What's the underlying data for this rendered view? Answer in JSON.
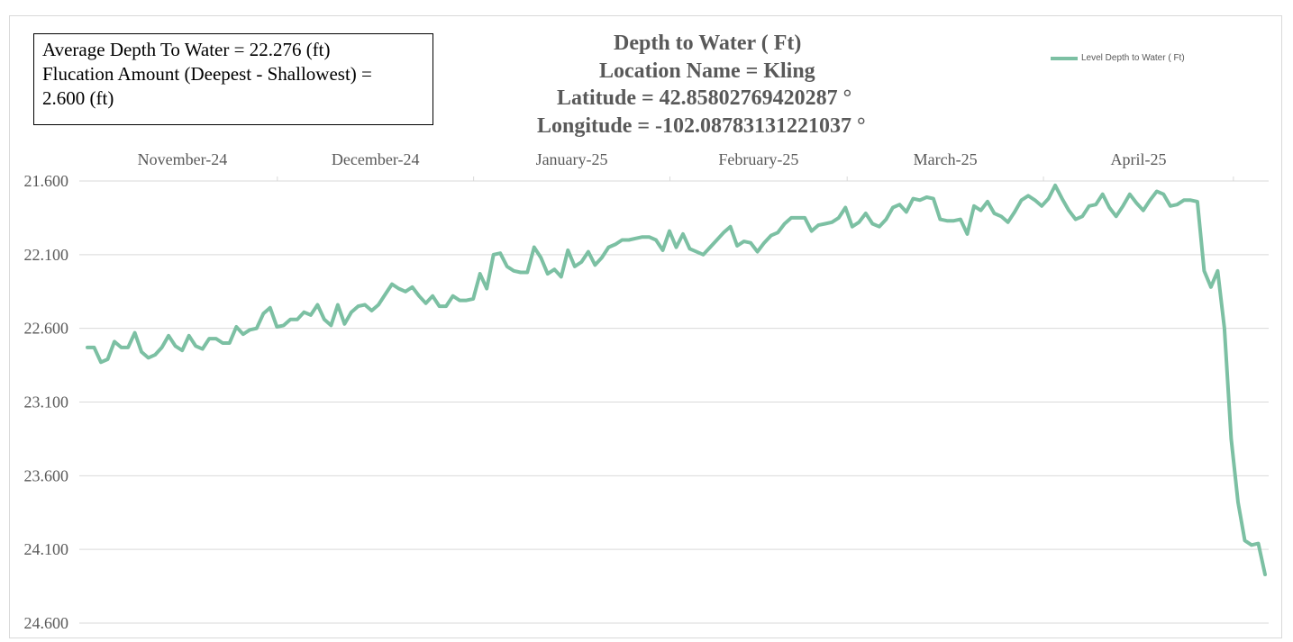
{
  "stats": {
    "line1": "Average Depth To Water = 22.276 (ft)",
    "line2": "Flucation Amount (Deepest - Shallowest) =",
    "line3": "2.600 (ft)"
  },
  "chart_data": {
    "type": "line",
    "title": "Depth to Water ( Ft)",
    "subtitle_lines": [
      "Location Name = Kling",
      "Latitude = 42.85802769420287 °",
      "Longitude = -102.08783131221037 °"
    ],
    "xlabel": "",
    "ylabel": "",
    "x_tick_labels": [
      "November-24",
      "December-24",
      "January-25",
      "February-25",
      "March-25",
      "April-25"
    ],
    "y_tick_labels": [
      "21.600",
      "22.100",
      "22.600",
      "23.100",
      "23.600",
      "24.100",
      "24.600"
    ],
    "ylim": [
      21.6,
      24.6
    ],
    "y_inverted": true,
    "grid": true,
    "legend_position": "top-right",
    "series": [
      {
        "name": "Level Depth to Water ( Ft)",
        "color": "#7cc0a3",
        "x_range": [
          "2024-11-01",
          "2025-05-06"
        ],
        "values": [
          22.73,
          22.73,
          22.83,
          22.81,
          22.69,
          22.73,
          22.73,
          22.63,
          22.76,
          22.8,
          22.78,
          22.73,
          22.65,
          22.72,
          22.75,
          22.65,
          22.72,
          22.74,
          22.67,
          22.67,
          22.7,
          22.7,
          22.59,
          22.64,
          22.61,
          22.6,
          22.5,
          22.46,
          22.59,
          22.58,
          22.54,
          22.54,
          22.49,
          22.51,
          22.44,
          22.54,
          22.58,
          22.44,
          22.57,
          22.49,
          22.45,
          22.44,
          22.48,
          22.44,
          22.37,
          22.3,
          22.33,
          22.35,
          22.32,
          22.38,
          22.43,
          22.38,
          22.45,
          22.45,
          22.38,
          22.41,
          22.41,
          22.4,
          22.23,
          22.33,
          22.1,
          22.09,
          22.18,
          22.21,
          22.22,
          22.22,
          22.05,
          22.12,
          22.23,
          22.2,
          22.25,
          22.07,
          22.18,
          22.15,
          22.08,
          22.17,
          22.12,
          22.05,
          22.03,
          22.0,
          22.0,
          21.99,
          21.98,
          21.98,
          22.0,
          22.07,
          21.94,
          22.05,
          21.96,
          22.06,
          22.08,
          22.1,
          22.05,
          22.0,
          21.95,
          21.91,
          22.04,
          22.01,
          22.02,
          22.08,
          22.02,
          21.97,
          21.95,
          21.89,
          21.85,
          21.85,
          21.85,
          21.94,
          21.9,
          21.89,
          21.88,
          21.85,
          21.78,
          21.91,
          21.88,
          21.82,
          21.89,
          21.91,
          21.86,
          21.78,
          21.76,
          21.81,
          21.72,
          21.73,
          21.71,
          21.72,
          21.86,
          21.87,
          21.87,
          21.86,
          21.96,
          21.77,
          21.8,
          21.74,
          21.82,
          21.84,
          21.88,
          21.81,
          21.73,
          21.7,
          21.73,
          21.77,
          21.72,
          21.63,
          21.72,
          21.8,
          21.86,
          21.84,
          21.77,
          21.76,
          21.69,
          21.78,
          21.84,
          21.77,
          21.69,
          21.75,
          21.8,
          21.73,
          21.67,
          21.69,
          21.77,
          21.76,
          21.73,
          21.73,
          21.74,
          22.21,
          22.32,
          22.21,
          22.6,
          23.35,
          23.78,
          24.04,
          24.07,
          24.06,
          24.27
        ]
      }
    ]
  }
}
